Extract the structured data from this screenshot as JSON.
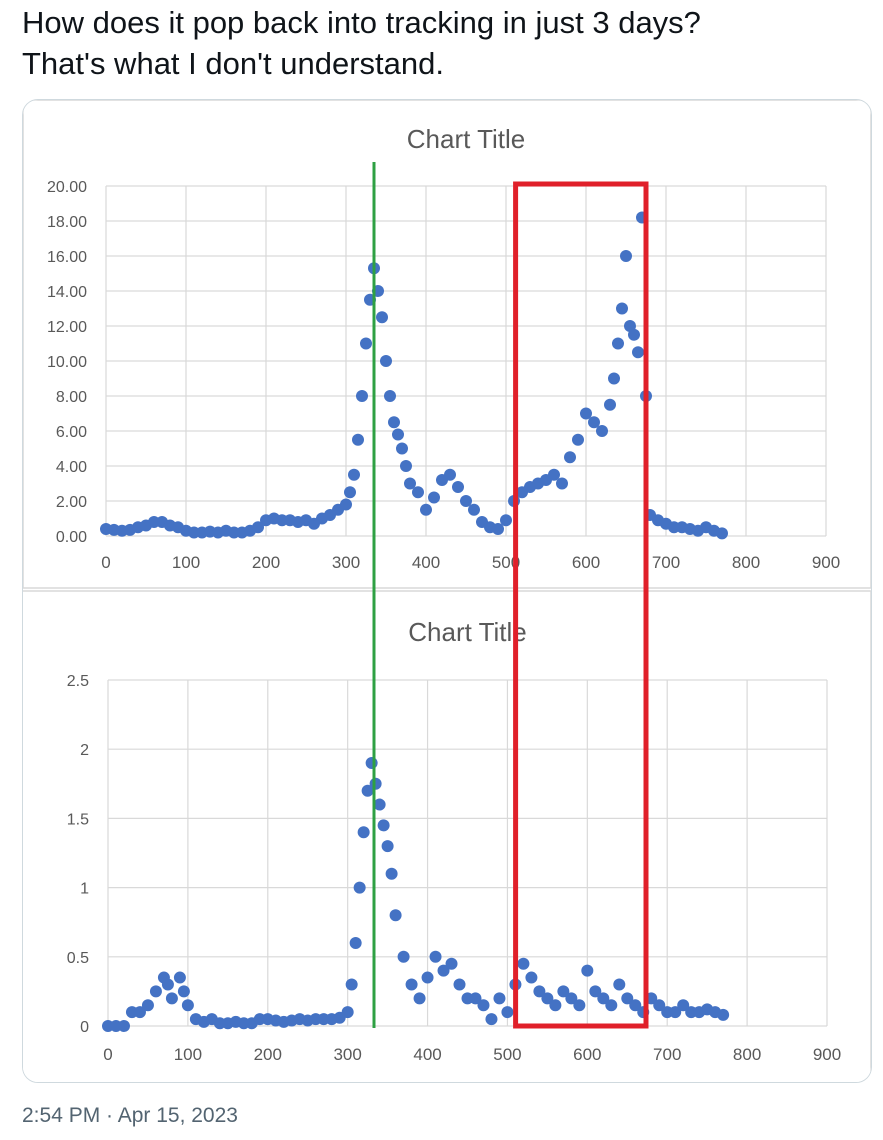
{
  "tweet": {
    "text_line1": "How does it pop back into tracking in just 3 days?",
    "text_line2": "That's what I don't understand.",
    "timestamp": "2:54 PM · Apr 15, 2023"
  },
  "colors": {
    "point": "#4472c4",
    "vertical_line": "#2ea043",
    "highlight_box": "#e0202a",
    "grid": "#d9d9d9",
    "text": "#595959"
  },
  "annotations": {
    "vertical_line_x": 335,
    "highlight_box_x": [
      512,
      675
    ]
  },
  "chart_data": [
    {
      "type": "scatter",
      "title": "Chart Title",
      "xlim": [
        0,
        900
      ],
      "ylim": [
        0,
        20
      ],
      "xticks": [
        "0",
        "100",
        "200",
        "300",
        "400",
        "500",
        "600",
        "700",
        "800",
        "900"
      ],
      "yticks": [
        "0.00",
        "2.00",
        "4.00",
        "6.00",
        "8.00",
        "10.00",
        "12.00",
        "14.00",
        "16.00",
        "18.00",
        "20.00"
      ],
      "grid": true,
      "x": [
        0,
        10,
        20,
        30,
        40,
        50,
        60,
        70,
        80,
        90,
        100,
        110,
        120,
        130,
        140,
        150,
        160,
        170,
        180,
        190,
        200,
        210,
        220,
        230,
        240,
        250,
        260,
        270,
        280,
        290,
        300,
        305,
        310,
        315,
        320,
        325,
        330,
        335,
        340,
        345,
        350,
        355,
        360,
        365,
        370,
        375,
        380,
        390,
        400,
        410,
        420,
        430,
        440,
        450,
        460,
        470,
        480,
        490,
        500,
        510,
        520,
        530,
        540,
        550,
        560,
        570,
        580,
        590,
        600,
        610,
        620,
        630,
        635,
        640,
        645,
        650,
        655,
        660,
        665,
        670,
        675,
        680,
        690,
        700,
        710,
        720,
        730,
        740,
        750,
        760,
        770
      ],
      "y": [
        0.4,
        0.35,
        0.3,
        0.35,
        0.5,
        0.6,
        0.8,
        0.8,
        0.6,
        0.5,
        0.3,
        0.2,
        0.2,
        0.25,
        0.2,
        0.3,
        0.2,
        0.2,
        0.3,
        0.5,
        0.9,
        1.0,
        0.9,
        0.9,
        0.8,
        0.9,
        0.7,
        1.0,
        1.2,
        1.5,
        1.8,
        2.5,
        3.5,
        5.5,
        8.0,
        11.0,
        13.5,
        15.3,
        14.0,
        12.5,
        10.0,
        8.0,
        6.5,
        5.8,
        5.0,
        4.0,
        3.0,
        2.5,
        1.5,
        2.2,
        3.2,
        3.5,
        2.8,
        2.0,
        1.5,
        0.8,
        0.5,
        0.4,
        0.9,
        2.0,
        2.5,
        2.8,
        3.0,
        3.2,
        3.5,
        3.0,
        4.5,
        5.5,
        7.0,
        6.5,
        6.0,
        7.5,
        9.0,
        11.0,
        13.0,
        16.0,
        12.0,
        11.5,
        10.5,
        18.2,
        8.0,
        1.2,
        0.9,
        0.7,
        0.5,
        0.5,
        0.4,
        0.3,
        0.5,
        0.3,
        0.15
      ]
    },
    {
      "type": "scatter",
      "title": "Chart Title",
      "xlim": [
        0,
        900
      ],
      "ylim": [
        0,
        2.5
      ],
      "xticks": [
        "0",
        "100",
        "200",
        "300",
        "400",
        "500",
        "600",
        "700",
        "800",
        "900"
      ],
      "yticks": [
        "0",
        "0.5",
        "1",
        "1.5",
        "2",
        "2.5"
      ],
      "grid": true,
      "x": [
        0,
        10,
        20,
        30,
        40,
        50,
        60,
        70,
        75,
        80,
        90,
        95,
        100,
        110,
        120,
        130,
        140,
        150,
        160,
        170,
        180,
        190,
        200,
        210,
        220,
        230,
        240,
        250,
        260,
        270,
        280,
        290,
        300,
        305,
        310,
        315,
        320,
        325,
        330,
        335,
        340,
        345,
        350,
        355,
        360,
        370,
        380,
        390,
        400,
        410,
        420,
        430,
        440,
        450,
        460,
        470,
        480,
        490,
        500,
        510,
        520,
        530,
        540,
        550,
        560,
        570,
        580,
        590,
        600,
        610,
        620,
        630,
        640,
        650,
        660,
        670,
        680,
        690,
        700,
        710,
        720,
        730,
        740,
        750,
        760,
        770
      ],
      "y": [
        0,
        0,
        0,
        0.1,
        0.1,
        0.15,
        0.25,
        0.35,
        0.3,
        0.2,
        0.35,
        0.25,
        0.15,
        0.05,
        0.03,
        0.05,
        0.02,
        0.02,
        0.03,
        0.02,
        0.02,
        0.05,
        0.05,
        0.04,
        0.03,
        0.04,
        0.05,
        0.04,
        0.05,
        0.05,
        0.05,
        0.06,
        0.1,
        0.3,
        0.6,
        1.0,
        1.4,
        1.7,
        1.9,
        1.75,
        1.6,
        1.45,
        1.3,
        1.1,
        0.8,
        0.5,
        0.3,
        0.2,
        0.35,
        0.5,
        0.4,
        0.45,
        0.3,
        0.2,
        0.2,
        0.15,
        0.05,
        0.2,
        0.1,
        0.3,
        0.45,
        0.35,
        0.25,
        0.2,
        0.15,
        0.25,
        0.2,
        0.15,
        0.4,
        0.25,
        0.2,
        0.15,
        0.3,
        0.2,
        0.15,
        0.1,
        0.2,
        0.15,
        0.1,
        0.1,
        0.15,
        0.1,
        0.1,
        0.12,
        0.1,
        0.08
      ]
    }
  ]
}
